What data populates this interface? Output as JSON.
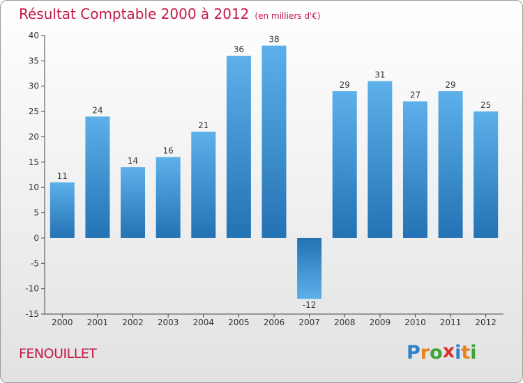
{
  "header": {
    "title": "Résultat Comptable 2000 à 2012",
    "subtitle": "(en milliers d'€)"
  },
  "commune": "FENOUILLET",
  "logo": {
    "letters": [
      "P",
      "r",
      "o",
      "x",
      "i",
      "t",
      "i"
    ],
    "colors": [
      "#2c7fc8",
      "#e8821e",
      "#3aa535",
      "#d9322e",
      "#2c7fc8",
      "#e8821e",
      "#3aa535"
    ]
  },
  "colors": {
    "bar_top": "#5db0ea",
    "bar_bottom": "#2372b4",
    "title": "#c21a46"
  },
  "chart_data": {
    "type": "bar",
    "title": "Résultat Comptable 2000 à 2012",
    "subtitle": "(en milliers d'€)",
    "xlabel": "",
    "ylabel": "",
    "categories": [
      "2000",
      "2001",
      "2002",
      "2003",
      "2004",
      "2005",
      "2006",
      "2007",
      "2008",
      "2009",
      "2010",
      "2011",
      "2012"
    ],
    "values": [
      11,
      24,
      14,
      16,
      21,
      36,
      38,
      -12,
      29,
      31,
      27,
      29,
      25
    ],
    "ylim": [
      -15,
      40
    ],
    "yticks": [
      40,
      35,
      30,
      25,
      20,
      15,
      10,
      5,
      0,
      -5,
      -10,
      -15
    ],
    "grid": false
  }
}
